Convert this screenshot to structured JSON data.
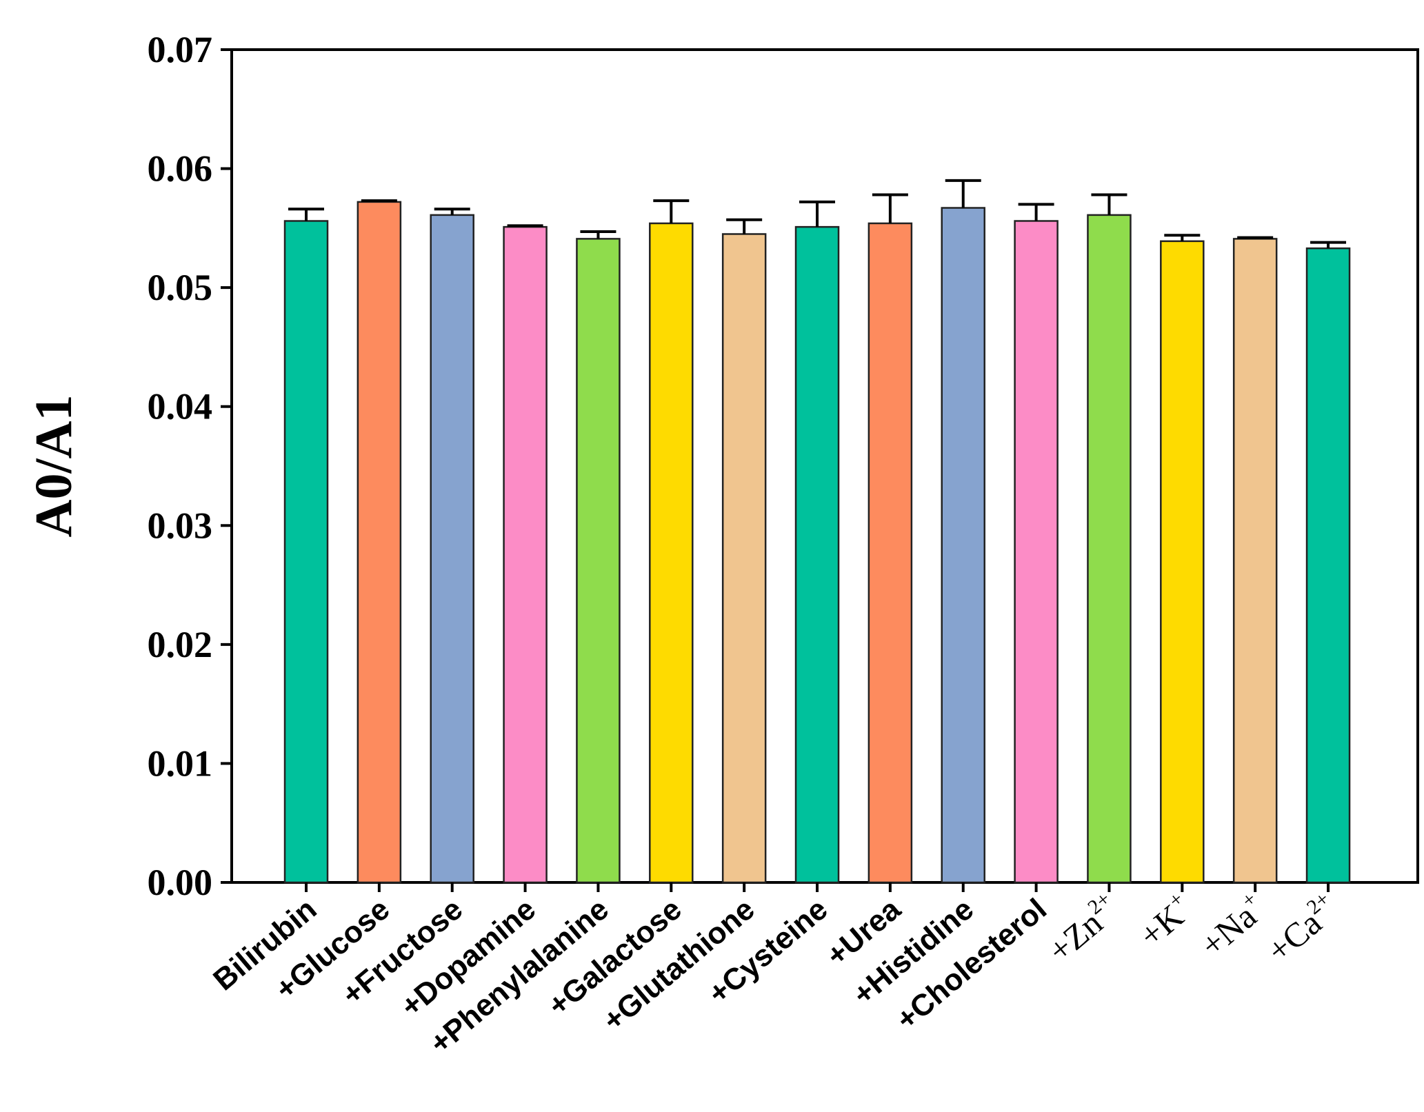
{
  "chart_data": {
    "type": "bar",
    "title": "",
    "xlabel": "",
    "ylabel": "A0/A1",
    "ylim": [
      0,
      0.07
    ],
    "yticks": [
      "0.00",
      "0.01",
      "0.02",
      "0.03",
      "0.04",
      "0.05",
      "0.06",
      "0.07"
    ],
    "grid": false,
    "categories": [
      {
        "text": "Bilirubin",
        "sup": ""
      },
      {
        "text": "+Glucose",
        "sup": ""
      },
      {
        "text": "+Fructose",
        "sup": ""
      },
      {
        "text": "+Dopamine",
        "sup": ""
      },
      {
        "text": "+Phenylalanine",
        "sup": ""
      },
      {
        "text": "+Galactose",
        "sup": ""
      },
      {
        "text": "+Glutathione",
        "sup": ""
      },
      {
        "text": "+Cysteine",
        "sup": ""
      },
      {
        "text": "+Urea",
        "sup": ""
      },
      {
        "text": "+Histidine",
        "sup": ""
      },
      {
        "text": "+Cholesterol",
        "sup": ""
      },
      {
        "text": "+Zn",
        "sup": "2+"
      },
      {
        "text": "+K",
        "sup": "+"
      },
      {
        "text": "+Na",
        "sup": "+"
      },
      {
        "text": "+Ca",
        "sup": "2+"
      }
    ],
    "values": [
      0.0556,
      0.0572,
      0.0561,
      0.0551,
      0.0541,
      0.0554,
      0.0545,
      0.0551,
      0.0554,
      0.0567,
      0.0556,
      0.0561,
      0.0539,
      0.0541,
      0.0533
    ],
    "errors": [
      0.001,
      0.0001,
      0.0005,
      0.0001,
      0.0006,
      0.0019,
      0.0012,
      0.0021,
      0.0024,
      0.0023,
      0.0014,
      0.0017,
      0.0005,
      0.0001,
      0.0005
    ],
    "colors": [
      "#00c19c",
      "#fd8b5e",
      "#86a3cf",
      "#fc8cc6",
      "#8fdc4c",
      "#fedb00",
      "#f0c58f",
      "#00c19c",
      "#fd8b5e",
      "#86a3cf",
      "#fc8cc6",
      "#8fdc4c",
      "#fedb00",
      "#f0c58f",
      "#00c19c"
    ]
  }
}
